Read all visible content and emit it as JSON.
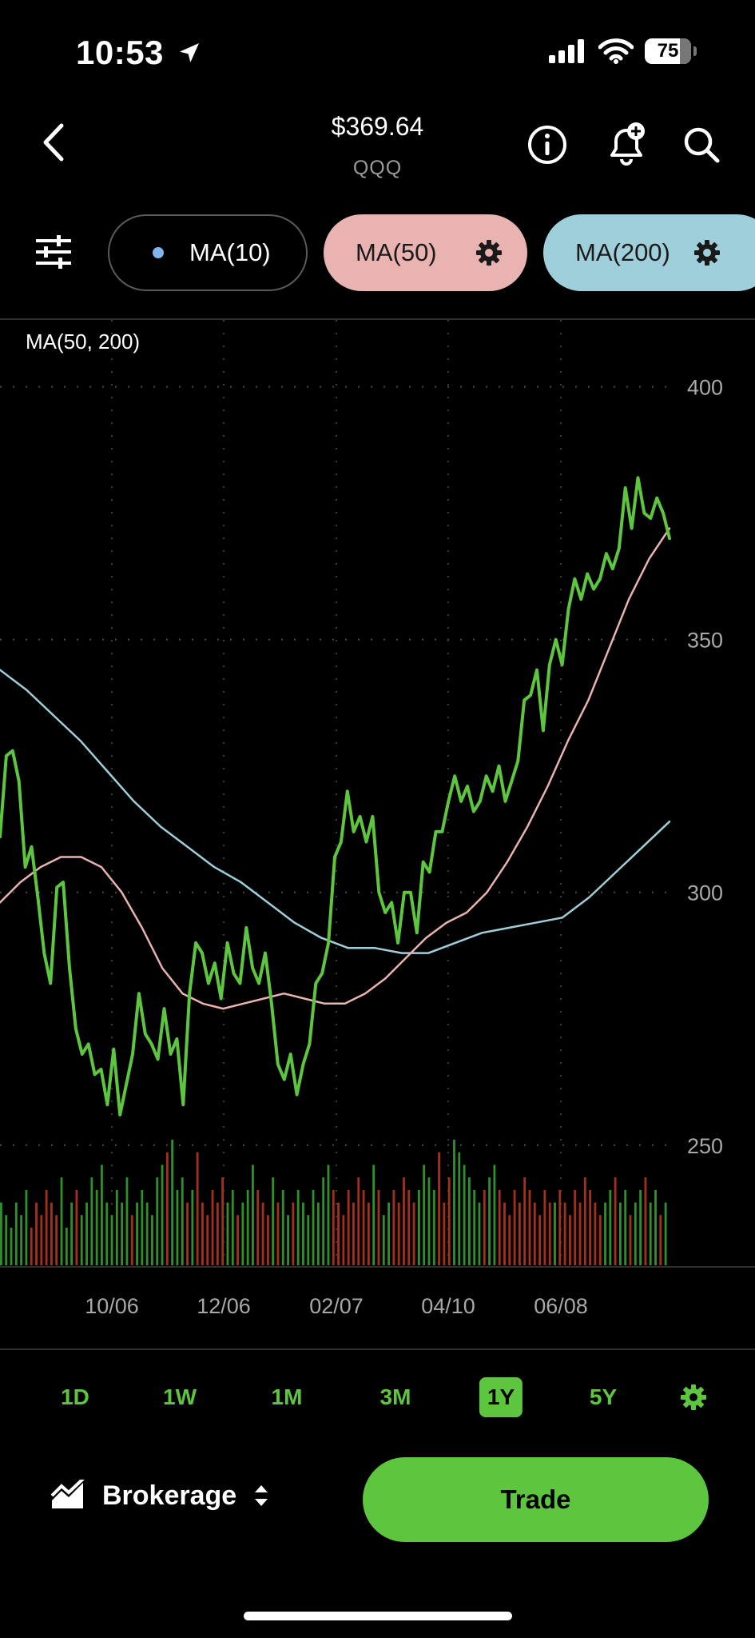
{
  "status_bar": {
    "time": "10:53",
    "battery": "75"
  },
  "header": {
    "price": "$369.64",
    "symbol": "QQQ"
  },
  "indicators": [
    {
      "label": "MA(10)",
      "dot_color": "#7fb6f0"
    },
    {
      "label": "MA(50)",
      "color": "#e9b3b1"
    },
    {
      "label": "MA(200)",
      "color": "#9fcfda"
    }
  ],
  "chart_data": {
    "type": "line",
    "title": "MA(50, 200)",
    "x_ticks": [
      "10/06",
      "12/06",
      "02/07",
      "04/10",
      "06/08"
    ],
    "y_ticks": [
      400,
      350,
      300,
      250
    ],
    "ylim": [
      240,
      405
    ],
    "grid": true,
    "series": [
      {
        "name": "",
        "color": "#5ec63e",
        "values": [
          311,
          327,
          328,
          322,
          305,
          309,
          299,
          288,
          282,
          301,
          302,
          285,
          273,
          268,
          270,
          264,
          265,
          258,
          269,
          256,
          262,
          268,
          280,
          272,
          270,
          267,
          277,
          268,
          271,
          258,
          280,
          290,
          288,
          282,
          286,
          279,
          290,
          284,
          282,
          293,
          285,
          282,
          288,
          278,
          266,
          263,
          268,
          260,
          266,
          270,
          282,
          284,
          290,
          307,
          310,
          320,
          312,
          315,
          310,
          315,
          300,
          296,
          298,
          290,
          300,
          300,
          292,
          306,
          304,
          312,
          312,
          318,
          323,
          318,
          321,
          316,
          318,
          323,
          320,
          325,
          318,
          322,
          326,
          338,
          339,
          344,
          332,
          345,
          350,
          345,
          356,
          362,
          358,
          363,
          360,
          362,
          367,
          364,
          368,
          380,
          372,
          382,
          375,
          374,
          378,
          375,
          370
        ]
      },
      {
        "name": "MA(50)",
        "color": "#e9b3b1",
        "values": [
          298,
          302,
          305,
          307,
          307,
          305,
          300,
          293,
          285,
          280,
          278,
          277,
          278,
          279,
          280,
          279,
          278,
          278,
          280,
          283,
          287,
          291,
          294,
          296,
          300,
          306,
          313,
          321,
          330,
          338,
          348,
          358,
          366,
          372
        ]
      },
      {
        "name": "MA(200)",
        "color": "#9fcfda",
        "values": [
          344,
          340,
          335,
          330,
          324,
          318,
          313,
          309,
          305,
          302,
          298,
          294,
          291,
          289,
          289,
          288,
          288,
          290,
          292,
          293,
          294,
          295,
          299,
          304,
          309,
          314
        ]
      }
    ],
    "volume": {
      "up_color": "#2f8f2a",
      "down_color": "#a3301f",
      "values": [
        5,
        4,
        3,
        5,
        4,
        6,
        3,
        5,
        4,
        6,
        5,
        4,
        7,
        3,
        5,
        6,
        4,
        5,
        7,
        6,
        8,
        5,
        4,
        6,
        5,
        7,
        4,
        5,
        6,
        5,
        4,
        7,
        8,
        9,
        10,
        6,
        7,
        5,
        6,
        9,
        5,
        4,
        6,
        5,
        7,
        5,
        6,
        4,
        5,
        6,
        8,
        6,
        5,
        4,
        7,
        5,
        6,
        4,
        5,
        6,
        5,
        4,
        6,
        5,
        7,
        8,
        6,
        5,
        4,
        6,
        5,
        7,
        6,
        5,
        8,
        6,
        4,
        5,
        6,
        5,
        7,
        6,
        5,
        6,
        8,
        7,
        6,
        9,
        5,
        7,
        10,
        9,
        8,
        7,
        6,
        5,
        6,
        7,
        8,
        6,
        5,
        4,
        6,
        5,
        7,
        6,
        5,
        4,
        6,
        5,
        5,
        6,
        5,
        4,
        6,
        5,
        7,
        6,
        5,
        4,
        5,
        6,
        7,
        5,
        6,
        4,
        5,
        6,
        7,
        5,
        6,
        4,
        5
      ]
    }
  },
  "periods": {
    "items": [
      "1D",
      "1W",
      "1M",
      "3M",
      "1Y",
      "5Y"
    ],
    "active": "1Y"
  },
  "bottom": {
    "account": "Brokerage",
    "trade_label": "Trade"
  }
}
